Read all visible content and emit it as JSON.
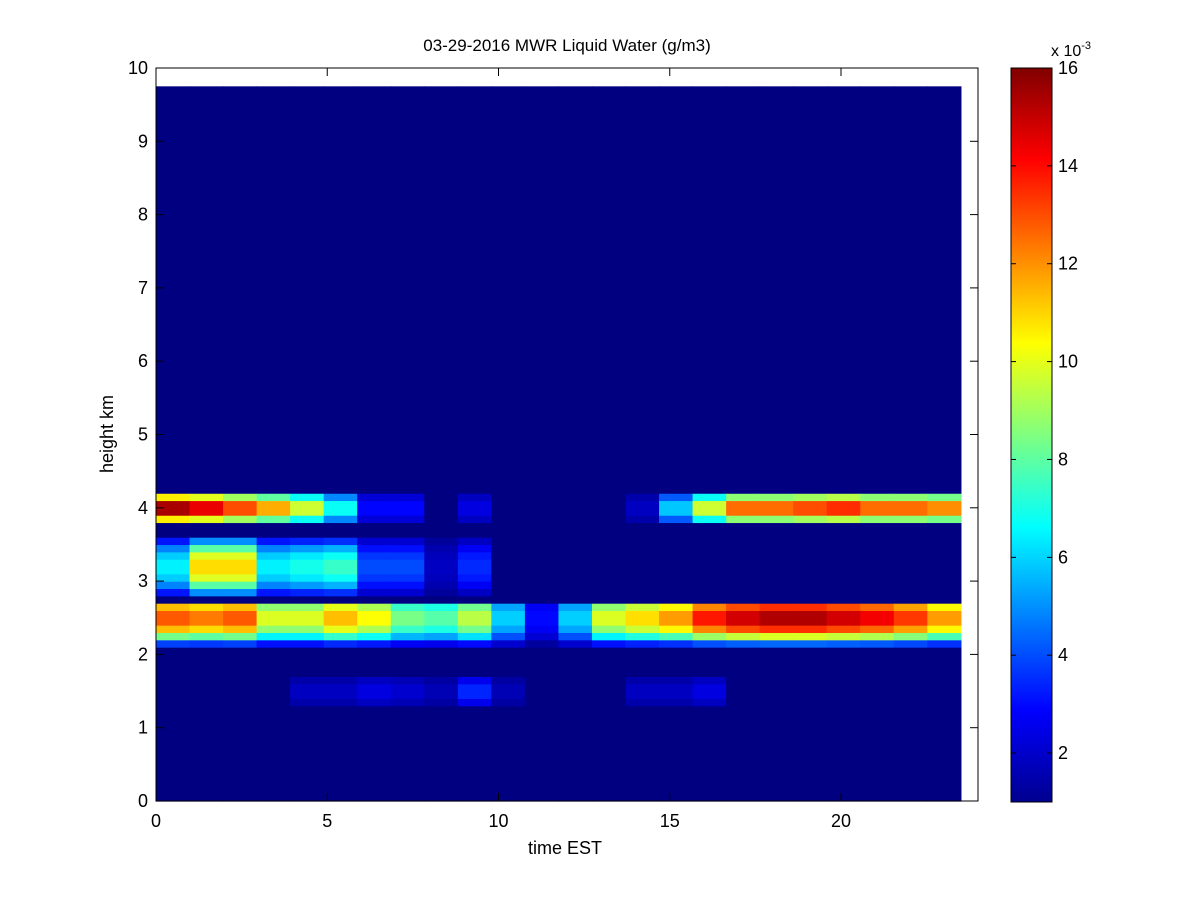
{
  "chart_data": {
    "type": "heatmap",
    "title": "03-29-2016 MWR Liquid Water (g/m3)",
    "xlabel": "time EST",
    "ylabel": "height km",
    "xlim": [
      0,
      24
    ],
    "ylim": [
      0,
      10
    ],
    "x_ticks": [
      0,
      5,
      10,
      15,
      20
    ],
    "y_ticks": [
      0,
      1,
      2,
      3,
      4,
      5,
      6,
      7,
      8,
      9,
      10
    ],
    "colormap": "jet",
    "colorbar": {
      "min": 1,
      "max": 16,
      "ticks": [
        2,
        4,
        6,
        8,
        10,
        12,
        14,
        16
      ],
      "exponent_label": "x 10",
      "exponent": "-3"
    },
    "time_bins": [
      0,
      1,
      2,
      3,
      4,
      5,
      6,
      7,
      8,
      9,
      10,
      11,
      12,
      13,
      14,
      15,
      16,
      17,
      18,
      19,
      20,
      21,
      22,
      23
    ],
    "x_range": [
      0,
      23.5
    ],
    "height_range": [
      0,
      9.75
    ],
    "background_value": 1,
    "grid": false,
    "features": [
      {
        "name": "cloud-layer-4km",
        "y_range": [
          3.8,
          4.25
        ],
        "peak_height": 4.0,
        "peaks": [
          [
            0,
            16
          ],
          [
            1,
            15
          ],
          [
            2,
            13.5
          ],
          [
            3,
            12
          ],
          [
            4,
            10
          ],
          [
            5,
            7
          ],
          [
            6,
            3
          ],
          [
            7,
            3
          ],
          [
            8,
            1
          ],
          [
            9,
            2.5
          ],
          [
            10,
            1
          ],
          [
            11,
            1
          ],
          [
            12,
            1
          ],
          [
            13,
            1
          ],
          [
            14,
            2
          ],
          [
            15,
            6
          ],
          [
            16,
            10
          ],
          [
            17,
            13
          ],
          [
            18,
            13
          ],
          [
            19,
            13.5
          ],
          [
            20,
            14
          ],
          [
            21,
            13
          ],
          [
            22,
            13
          ],
          [
            23,
            12.5
          ]
        ]
      },
      {
        "name": "cloud-layer-3km",
        "y_range": [
          2.75,
          3.65
        ],
        "peak_height": 3.2,
        "peaks": [
          [
            0,
            6.5
          ],
          [
            1,
            11
          ],
          [
            2,
            11
          ],
          [
            3,
            6.5
          ],
          [
            4,
            7
          ],
          [
            5,
            7.5
          ],
          [
            6,
            4
          ],
          [
            7,
            4
          ],
          [
            8,
            2
          ],
          [
            9,
            3.5
          ],
          [
            10,
            1
          ],
          [
            11,
            1
          ],
          [
            12,
            1
          ],
          [
            13,
            1
          ],
          [
            14,
            1
          ],
          [
            15,
            1
          ],
          [
            16,
            1
          ],
          [
            17,
            1
          ],
          [
            18,
            1
          ],
          [
            19,
            1
          ],
          [
            20,
            1
          ],
          [
            21,
            1
          ],
          [
            22,
            1
          ],
          [
            23,
            1
          ]
        ]
      },
      {
        "name": "cloud-layer-2.5km",
        "y_range": [
          2.1,
          2.75
        ],
        "peak_height": 2.5,
        "peaks": [
          [
            0,
            13
          ],
          [
            1,
            12.5
          ],
          [
            2,
            13
          ],
          [
            3,
            10
          ],
          [
            4,
            10
          ],
          [
            5,
            11.5
          ],
          [
            6,
            10.5
          ],
          [
            7,
            8.5
          ],
          [
            8,
            8
          ],
          [
            9,
            9.5
          ],
          [
            10,
            6
          ],
          [
            11,
            3
          ],
          [
            12,
            6
          ],
          [
            13,
            10
          ],
          [
            14,
            11
          ],
          [
            15,
            12
          ],
          [
            16,
            14
          ],
          [
            17,
            15
          ],
          [
            18,
            15.5
          ],
          [
            19,
            15.5
          ],
          [
            20,
            15
          ],
          [
            21,
            14.5
          ],
          [
            22,
            13.5
          ],
          [
            23,
            12
          ]
        ]
      },
      {
        "name": "cloud-layer-1.5km",
        "y_range": [
          1.25,
          1.75
        ],
        "peak_height": 1.5,
        "peaks": [
          [
            0,
            1
          ],
          [
            1,
            1
          ],
          [
            2,
            1
          ],
          [
            3,
            1
          ],
          [
            4,
            2
          ],
          [
            5,
            2
          ],
          [
            6,
            2.5
          ],
          [
            7,
            2.2
          ],
          [
            8,
            1.8
          ],
          [
            9,
            3.5
          ],
          [
            10,
            1.8
          ],
          [
            11,
            1
          ],
          [
            12,
            1
          ],
          [
            13,
            1
          ],
          [
            14,
            2
          ],
          [
            15,
            2
          ],
          [
            16,
            2.5
          ],
          [
            17,
            1
          ],
          [
            18,
            1
          ],
          [
            19,
            1
          ],
          [
            20,
            1
          ],
          [
            21,
            1
          ],
          [
            22,
            1
          ],
          [
            23,
            1
          ]
        ]
      }
    ]
  }
}
